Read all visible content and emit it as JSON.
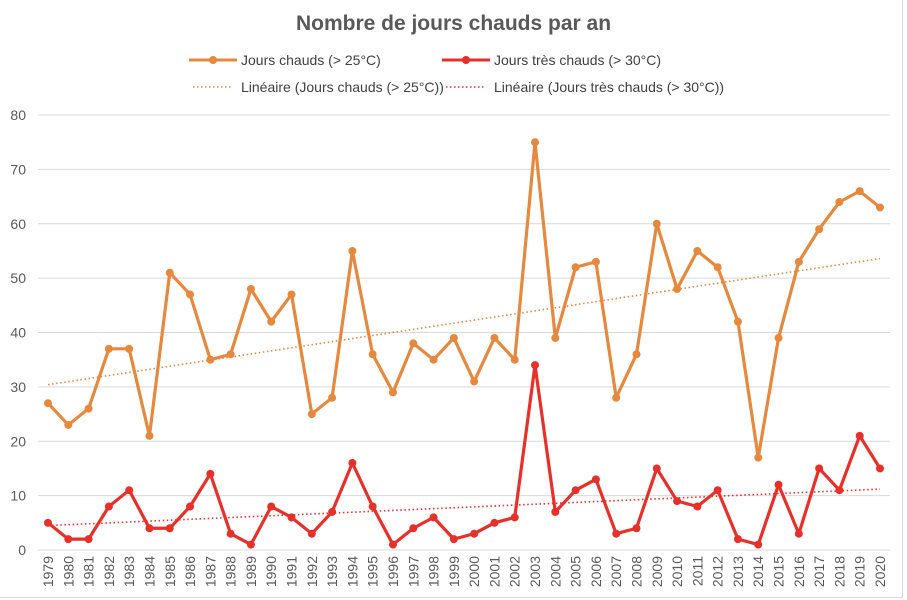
{
  "chart_data": {
    "type": "line",
    "title": "Nombre de jours chauds par an",
    "xlabel": "",
    "ylabel": "",
    "ylim": [
      0,
      80
    ],
    "yticks": [
      0,
      10,
      20,
      30,
      40,
      50,
      60,
      70,
      80
    ],
    "grid": true,
    "legend_position": "top",
    "categories": [
      "1979",
      "1980",
      "1981",
      "1982",
      "1983",
      "1984",
      "1985",
      "1986",
      "1987",
      "1988",
      "1989",
      "1990",
      "1991",
      "1992",
      "1993",
      "1994",
      "1995",
      "1996",
      "1997",
      "1998",
      "1999",
      "2000",
      "2001",
      "2002",
      "2003",
      "2004",
      "2005",
      "2006",
      "2007",
      "2008",
      "2009",
      "2010",
      "2011",
      "2012",
      "2013",
      "2014",
      "2015",
      "2016",
      "2017",
      "2018",
      "2019",
      "2020"
    ],
    "series": [
      {
        "name": "Jours chauds (> 25°C)",
        "color": "#E6883E",
        "style": "solid-markers",
        "values": [
          27,
          23,
          26,
          37,
          37,
          21,
          51,
          47,
          35,
          36,
          48,
          42,
          47,
          25,
          28,
          55,
          36,
          29,
          38,
          35,
          39,
          31,
          39,
          35,
          75,
          39,
          52,
          53,
          28,
          36,
          60,
          48,
          55,
          52,
          42,
          17,
          39,
          53,
          59,
          64,
          66,
          63
        ]
      },
      {
        "name": "Jours très chauds (> 30°C)",
        "color": "#E8302A",
        "style": "solid-markers",
        "values": [
          5,
          2,
          2,
          8,
          11,
          4,
          4,
          8,
          14,
          3,
          1,
          8,
          6,
          3,
          7,
          16,
          8,
          1,
          4,
          6,
          2,
          3,
          5,
          6,
          34,
          7,
          11,
          13,
          3,
          4,
          15,
          9,
          8,
          11,
          2,
          1,
          12,
          3,
          15,
          11,
          21,
          15
        ]
      }
    ],
    "trendlines": [
      {
        "name": "Linéaire (Jours chauds (> 25°C))",
        "color": "#E6883E",
        "of_series": 0,
        "start": 30.4,
        "end": 53.6
      },
      {
        "name": "Linéaire (Jours très chauds (> 30°C))",
        "color": "#E8302A",
        "of_series": 1,
        "start": 4.5,
        "end": 11.2
      }
    ]
  },
  "legend": [
    {
      "label": "Jours chauds (> 25°C)",
      "kind": "line",
      "color": "#E6883E"
    },
    {
      "label": "Jours très chauds (> 30°C)",
      "kind": "line",
      "color": "#E8302A"
    },
    {
      "label": "Linéaire (Jours chauds (> 25°C))",
      "kind": "dotted",
      "color": "#E6883E"
    },
    {
      "label": "Linéaire (Jours très chauds (> 30°C))",
      "kind": "dotted",
      "color": "#E8302A"
    }
  ]
}
